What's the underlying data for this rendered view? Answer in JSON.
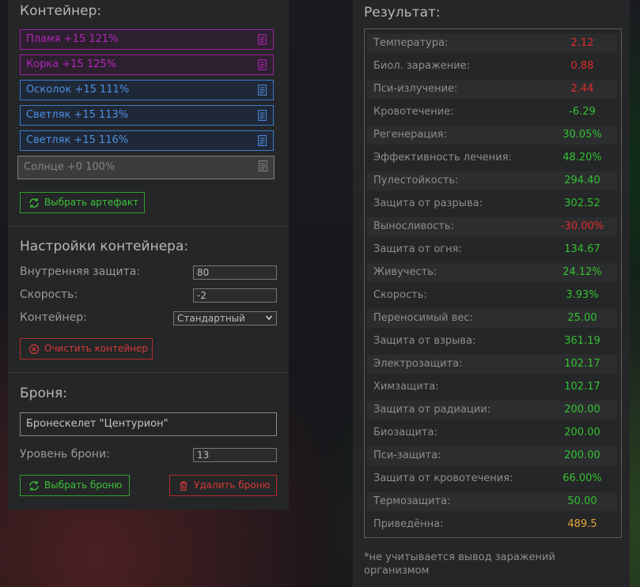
{
  "container": {
    "heading": "Контейнер:",
    "slots": [
      {
        "label": "Пламя +15 121%",
        "color": "#b226b8"
      },
      {
        "label": "Корка +15 125%",
        "color": "#b226b8"
      },
      {
        "label": "Осколок +15 111%",
        "color": "#4f8fe0"
      },
      {
        "label": "Светляк +15 113%",
        "color": "#4f8fe0"
      },
      {
        "label": "Светляк +15 116%",
        "color": "#4f8fe0"
      },
      {
        "label": "Солнце +0 100%",
        "color": "#858585"
      }
    ],
    "select_artifact_label": "Выбрать артефакт"
  },
  "settings": {
    "heading": "Настройки контейнера:",
    "inner_protection_label": "Внутренняя защита:",
    "inner_protection_value": "80",
    "speed_label": "Скорость:",
    "speed_value": "-2",
    "container_label": "Контейнер:",
    "container_value": "Стандартный",
    "clear_label": "Очистить контейнер"
  },
  "armor": {
    "heading": "Броня:",
    "name": "Бронескелет \"Центурион\"",
    "level_label": "Уровень брони:",
    "level_value": "13",
    "select_label": "Выбрать броню",
    "delete_label": "Удалить броню"
  },
  "result": {
    "heading": "Результат:",
    "rows": [
      {
        "name": "Температура:",
        "value": "2.12",
        "status": "red"
      },
      {
        "name": "Биол. заражение:",
        "value": "0.88",
        "status": "red"
      },
      {
        "name": "Пси-излучение:",
        "value": "2.44",
        "status": "red"
      },
      {
        "name": "Кровотечение:",
        "value": "-6.29",
        "status": "green"
      },
      {
        "name": "Регенерация:",
        "value": "30.05%",
        "status": "green"
      },
      {
        "name": "Эффективность лечения:",
        "value": "48.20%",
        "status": "green"
      },
      {
        "name": "Пулестойкость:",
        "value": "294.40",
        "status": "green"
      },
      {
        "name": "Защита от разрыва:",
        "value": "302.52",
        "status": "green"
      },
      {
        "name": "Выносливость:",
        "value": "-30.00%",
        "status": "red"
      },
      {
        "name": "Защита от огня:",
        "value": "134.67",
        "status": "green"
      },
      {
        "name": "Живучесть:",
        "value": "24.12%",
        "status": "green"
      },
      {
        "name": "Скорость:",
        "value": "3.93%",
        "status": "green"
      },
      {
        "name": "Переносимый вес:",
        "value": "25.00",
        "status": "green"
      },
      {
        "name": "Защита от взрыва:",
        "value": "361.19",
        "status": "green"
      },
      {
        "name": "Электрозащита:",
        "value": "102.17",
        "status": "green"
      },
      {
        "name": "Химзащита:",
        "value": "102.17",
        "status": "green"
      },
      {
        "name": "Защита от радиации:",
        "value": "200.00",
        "status": "green"
      },
      {
        "name": "Биозащита:",
        "value": "200.00",
        "status": "green"
      },
      {
        "name": "Пси-защита:",
        "value": "200.00",
        "status": "green"
      },
      {
        "name": "Защита от кровотечения:",
        "value": "66.00%",
        "status": "green"
      },
      {
        "name": "Термозащита:",
        "value": "50.00",
        "status": "green"
      },
      {
        "name": "Приведённа:",
        "value": "489.5",
        "status": "orange"
      }
    ],
    "footnote": "*не учитывается вывод заражений организмом"
  },
  "icons": {
    "slot": "document-icon",
    "select": "refresh-icon",
    "clear": "close-circle-icon",
    "delete": "trash-icon",
    "dropdown": "chevron-down-icon"
  },
  "colors": {
    "panel": "#252627",
    "red": "#e02d2d",
    "green": "#33c133",
    "orange": "#e8a33b"
  }
}
